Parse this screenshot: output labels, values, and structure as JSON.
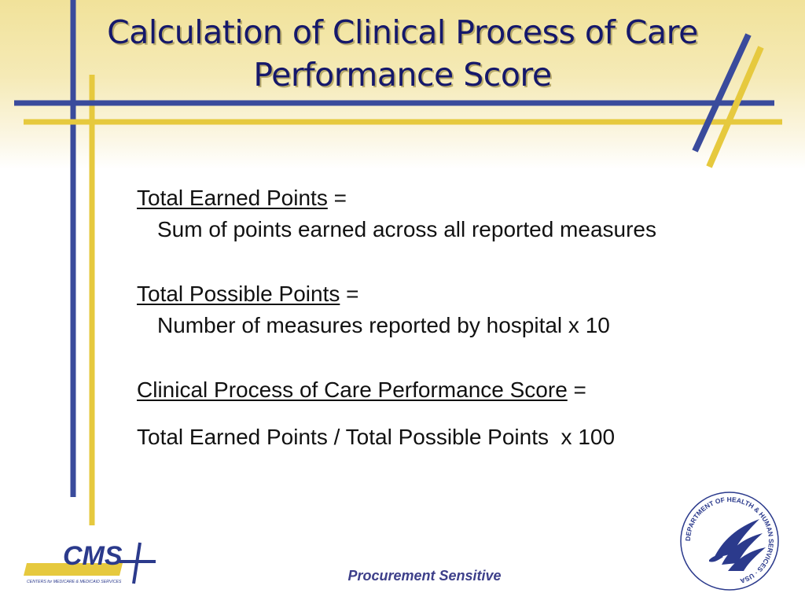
{
  "slide": {
    "title_line1": "Calculation of Clinical Process of Care",
    "title_line2": "Performance Score"
  },
  "content": {
    "earned": {
      "term": "Total Earned Points",
      "operator": "=",
      "definition": "Sum of points earned across all reported measures"
    },
    "possible": {
      "term": "Total Possible Points",
      "operator": "=",
      "definition": "Number of measures reported by hospital x 10"
    },
    "score": {
      "term": "Clinical Process of Care Performance Score",
      "operator": "=",
      "formula": "Total Earned Points / Total Possible Points  x 100"
    }
  },
  "footer": {
    "text": "Procurement Sensitive"
  },
  "logos": {
    "cms": {
      "wordmark": "CMS",
      "subtitle": "CENTERS for MEDICARE & MEDICAID SERVICES"
    },
    "hhs": {
      "ring_text": "DEPARTMENT OF HEALTH & HUMAN SERVICES · USA"
    }
  },
  "colors": {
    "title": "#15186b",
    "navy_line": "#3a4b9c",
    "gold_line": "#e6c93e",
    "footer": "#3d3f8a"
  }
}
